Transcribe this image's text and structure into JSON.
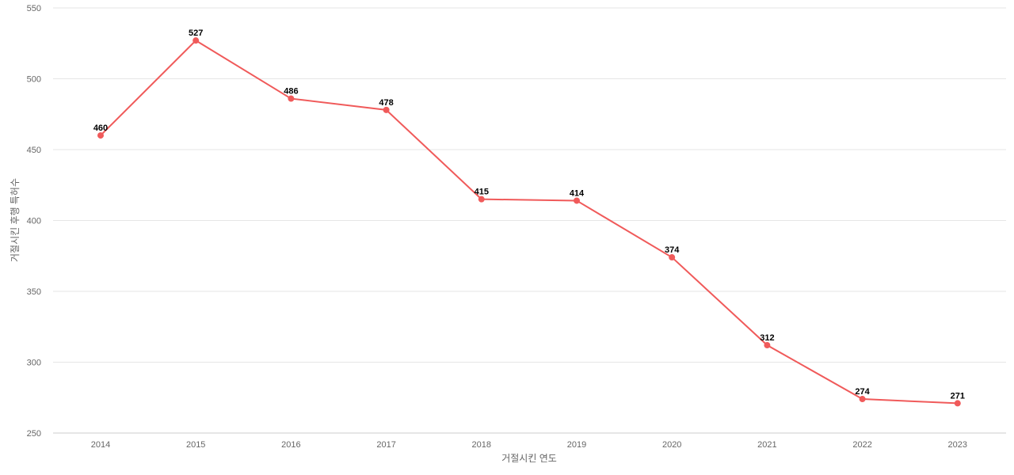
{
  "chart_data": {
    "type": "line",
    "title": "",
    "xlabel": "거절시킨 연도",
    "ylabel": "거절시킨 후행 특허수",
    "x": [
      "2014",
      "2015",
      "2016",
      "2017",
      "2018",
      "2019",
      "2020",
      "2021",
      "2022",
      "2023"
    ],
    "series": [
      {
        "values": [
          460,
          527,
          486,
          478,
          415,
          414,
          374,
          312,
          274,
          271
        ]
      }
    ],
    "ylim": [
      250,
      550
    ],
    "yticks": [
      250,
      300,
      350,
      400,
      450,
      500,
      550
    ],
    "grid": true,
    "legend": "none",
    "colors": {
      "line": "#f05a5a",
      "grid": "#e6e6e6",
      "text": "#666666"
    }
  }
}
